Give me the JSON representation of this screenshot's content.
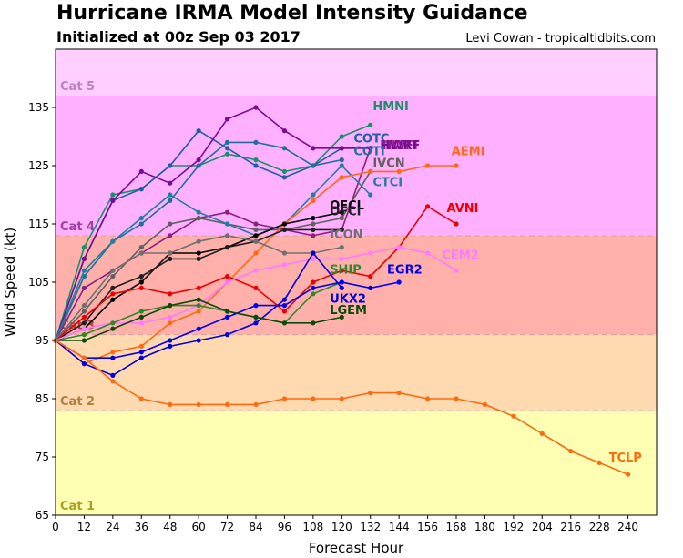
{
  "title": "Hurricane IRMA Model Intensity Guidance",
  "subtitle": "Initialized at 00z Sep 03 2017",
  "credit": "Levi Cowan - tropicaltidbits.com",
  "chart_data": {
    "type": "line",
    "xlabel": "Forecast Hour",
    "ylabel": "Wind Speed (kt)",
    "xlim": [
      0,
      252
    ],
    "ylim": [
      65,
      145
    ],
    "xticks": [
      0,
      12,
      24,
      36,
      48,
      60,
      72,
      84,
      96,
      108,
      120,
      132,
      144,
      156,
      168,
      180,
      192,
      204,
      216,
      228,
      240
    ],
    "yticks": [
      65,
      75,
      85,
      95,
      105,
      115,
      125,
      135
    ],
    "categories": [
      {
        "label": "Cat 1",
        "from": 65,
        "to": 83,
        "color": "#ffffb4",
        "label_color": "#a8a020"
      },
      {
        "label": "Cat 2",
        "from": 83,
        "to": 96,
        "color": "#ffd9b0",
        "label_color": "#b08040"
      },
      {
        "label": "Cat 3",
        "from": 96,
        "to": 113,
        "color": "#ffb0aa",
        "label_color": "#b04040"
      },
      {
        "label": "Cat 4",
        "from": 113,
        "to": 137,
        "color": "#ffb0ff",
        "label_color": "#a040a0"
      },
      {
        "label": "Cat 5",
        "from": 137,
        "to": 145,
        "color": "#ffd0ff",
        "label_color": "#c080c0"
      }
    ],
    "series": [
      {
        "name": "HMNI",
        "color": "#1a8f6a",
        "x": [
          0,
          12,
          24,
          36,
          48,
          60,
          72,
          84,
          96,
          108,
          120,
          132
        ],
        "y": [
          95,
          111,
          120,
          121,
          125,
          125,
          127,
          126,
          124,
          125,
          130,
          132
        ]
      },
      {
        "name": "COTC",
        "color": "#1f5fa8",
        "x": [
          0,
          12,
          24,
          36,
          48,
          60,
          72,
          84,
          96,
          108,
          120,
          132
        ],
        "y": [
          95,
          109,
          119,
          121,
          125,
          131,
          128,
          125,
          123,
          125,
          128,
          128
        ]
      },
      {
        "name": "COTI",
        "color": "#1f6fa0",
        "x": [
          0,
          12,
          24,
          36,
          48,
          60,
          72,
          84,
          96,
          108,
          120
        ],
        "y": [
          95,
          106,
          112,
          115,
          119,
          125,
          129,
          129,
          128,
          125,
          126
        ]
      },
      {
        "name": "HWFI",
        "color": "#8a2080",
        "x": [
          0,
          12,
          24,
          36,
          48,
          60,
          72,
          84,
          96,
          108,
          120,
          132
        ],
        "y": [
          95,
          104,
          107,
          110,
          113,
          116,
          117,
          115,
          114,
          113,
          114,
          128
        ]
      },
      {
        "name": "HWRF",
        "color": "#7a0a9a",
        "x": [
          0,
          12,
          24,
          36,
          48,
          60,
          72,
          84,
          96,
          108,
          120,
          132
        ],
        "y": [
          95,
          109,
          119,
          124,
          122,
          126,
          133,
          135,
          131,
          128,
          128,
          128
        ]
      },
      {
        "name": "IVCN",
        "color": "#606060",
        "x": [
          0,
          12,
          24,
          36,
          48,
          60,
          72,
          84,
          96,
          108,
          120,
          132
        ],
        "y": [
          95,
          100,
          106,
          111,
          115,
          116,
          115,
          114,
          114,
          115,
          116,
          124
        ]
      },
      {
        "name": "CTCI",
        "color": "#1f7fa0",
        "x": [
          0,
          12,
          24,
          36,
          48,
          60,
          72,
          84,
          96,
          108,
          120,
          132
        ],
        "y": [
          95,
          107,
          112,
          116,
          120,
          117,
          115,
          113,
          115,
          120,
          125,
          120
        ]
      },
      {
        "name": "AEMI",
        "color": "#ff6a10",
        "x": [
          0,
          12,
          24,
          36,
          48,
          60,
          72,
          84,
          96,
          108,
          120,
          132,
          144,
          156,
          168
        ],
        "y": [
          95,
          91,
          93,
          94,
          98,
          100,
          105,
          110,
          115,
          119,
          123,
          124,
          124,
          125,
          125
        ]
      },
      {
        "name": "OFCL",
        "color": "#000000",
        "x": [
          0,
          12,
          24,
          36,
          48,
          60,
          72,
          84,
          96,
          108,
          120
        ],
        "y": [
          95,
          97,
          102,
          105,
          110,
          110,
          111,
          113,
          115,
          116,
          117
        ]
      },
      {
        "name": "OFCI",
        "color": "#202020",
        "x": [
          0,
          12,
          24,
          36,
          48,
          60,
          72,
          84,
          96,
          108,
          120
        ],
        "y": [
          95,
          98,
          104,
          106,
          109,
          109,
          111,
          112,
          114,
          114,
          114
        ]
      },
      {
        "name": "ICON",
        "color": "#707070",
        "x": [
          0,
          12,
          24,
          36,
          48,
          60,
          72,
          84,
          96,
          108,
          120
        ],
        "y": [
          95,
          101,
          107,
          110,
          110,
          112,
          113,
          112,
          110,
          110,
          111
        ]
      },
      {
        "name": "AVNI",
        "color": "#ee0000",
        "x": [
          0,
          12,
          24,
          36,
          48,
          60,
          72,
          84,
          96,
          108,
          120,
          132,
          144,
          156,
          168
        ],
        "y": [
          95,
          99,
          103,
          104,
          103,
          104,
          106,
          104,
          100,
          105,
          107,
          106,
          111,
          118,
          115
        ]
      },
      {
        "name": "CEM2",
        "color": "#ff7aff",
        "x": [
          0,
          12,
          24,
          36,
          48,
          60,
          72,
          84,
          96,
          108,
          120,
          132,
          144,
          156,
          168
        ],
        "y": [
          95,
          97,
          98,
          98,
          99,
          101,
          105,
          107,
          108,
          109,
          109,
          110,
          111,
          110,
          107
        ]
      },
      {
        "name": "SHIP",
        "color": "#2a8a2a",
        "x": [
          0,
          12,
          24,
          36,
          48,
          60,
          72,
          84,
          96,
          108,
          120
        ],
        "y": [
          95,
          96,
          98,
          100,
          101,
          101,
          100,
          99,
          98,
          103,
          105
        ]
      },
      {
        "name": "EGR2",
        "color": "#0000ee",
        "x": [
          0,
          12,
          24,
          36,
          48,
          60,
          72,
          84,
          96,
          108,
          120,
          132,
          144
        ],
        "y": [
          95,
          92,
          92,
          93,
          95,
          97,
          99,
          101,
          101,
          104,
          105,
          104,
          105
        ]
      },
      {
        "name": "UKX2",
        "color": "#0000dd",
        "x": [
          0,
          12,
          24,
          36,
          48,
          60,
          72,
          84,
          96,
          108,
          120
        ],
        "y": [
          95,
          91,
          89,
          92,
          94,
          95,
          96,
          98,
          102,
          110,
          104
        ]
      },
      {
        "name": "LGEM",
        "color": "#0a4a0a",
        "x": [
          0,
          12,
          24,
          36,
          48,
          60,
          72,
          84,
          96,
          108,
          120
        ],
        "y": [
          95,
          95,
          97,
          99,
          101,
          102,
          100,
          99,
          98,
          98,
          99
        ]
      },
      {
        "name": "TCLP",
        "color": "#ff6a10",
        "x": [
          0,
          12,
          24,
          36,
          48,
          60,
          72,
          84,
          96,
          108,
          120,
          132,
          144,
          156,
          168,
          180,
          192,
          204,
          216,
          228,
          240
        ],
        "y": [
          95,
          92,
          88,
          85,
          84,
          84,
          84,
          84,
          85,
          85,
          85,
          86,
          86,
          85,
          85,
          84,
          82,
          79,
          76,
          74,
          72
        ]
      }
    ],
    "series_labels": [
      {
        "text": "HMNI",
        "series": "HMNI",
        "x": 133,
        "y": 134.5
      },
      {
        "text": "COTC",
        "series": "COTC",
        "x": 125,
        "y": 129
      },
      {
        "text": "HWFI",
        "series": "HWFI",
        "x": 137,
        "y": 127.8
      },
      {
        "text": "HWRF",
        "series": "HWRF",
        "x": 136,
        "y": 127.8
      },
      {
        "text": "COTI",
        "series": "COTI",
        "x": 125,
        "y": 126.8
      },
      {
        "text": "IVCN",
        "series": "IVCN",
        "x": 133,
        "y": 124.8
      },
      {
        "text": "CTCI",
        "series": "CTCI",
        "x": 133,
        "y": 121.5
      },
      {
        "text": "AEMI",
        "series": "AEMI",
        "x": 166,
        "y": 126.8
      },
      {
        "text": "OFCL",
        "series": "OFCL",
        "x": 115,
        "y": 117.5
      },
      {
        "text": "OFCI",
        "series": "OFCI",
        "x": 115,
        "y": 116.5
      },
      {
        "text": "AVNI",
        "series": "AVNI",
        "x": 164,
        "y": 117
      },
      {
        "text": "ICON",
        "series": "ICON",
        "x": 115,
        "y": 112.5
      },
      {
        "text": "CEM2",
        "series": "CEM2",
        "x": 162,
        "y": 109
      },
      {
        "text": "SHIP",
        "series": "SHIP",
        "x": 115,
        "y": 106.5
      },
      {
        "text": "EGR2",
        "series": "EGR2",
        "x": 139,
        "y": 106.5
      },
      {
        "text": "UKX2",
        "series": "UKX2",
        "x": 115,
        "y": 101.5
      },
      {
        "text": "LGEM",
        "series": "LGEM",
        "x": 115,
        "y": 99.5
      },
      {
        "text": "TCLP",
        "series": "TCLP",
        "x": 232,
        "y": 74.2
      }
    ]
  }
}
